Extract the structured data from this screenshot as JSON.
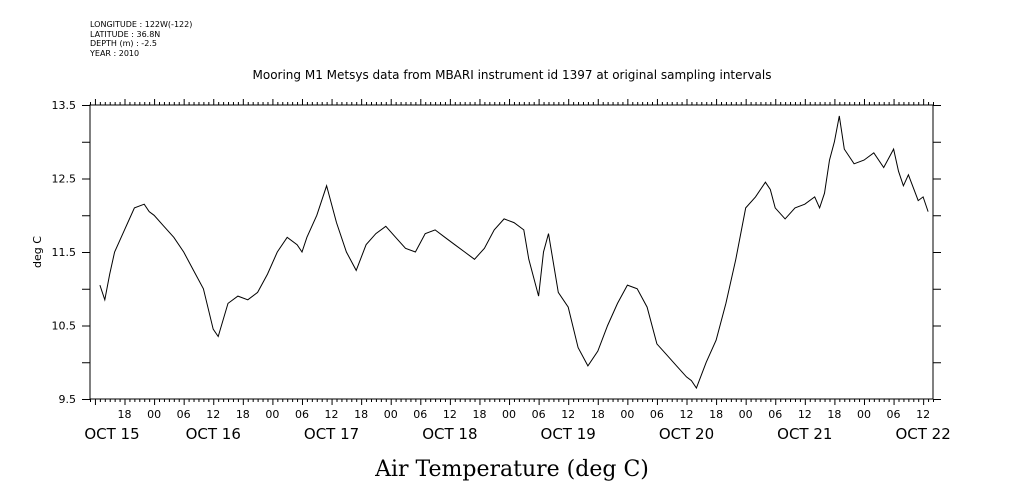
{
  "metadata": {
    "longitude": "LONGITUDE : 122W(-122)",
    "latitude": "LATITUDE : 36.8N",
    "depth": "DEPTH (m) : -2.5",
    "year": "YEAR : 2010"
  },
  "chart_data": {
    "type": "line",
    "title": "Mooring M1 Metsys data from MBARI instrument id 1397 at original sampling intervals",
    "xlabel": "Air Temperature (deg C)",
    "ylabel": "deg C",
    "ylim": [
      9.5,
      13.5
    ],
    "yticks": [
      9.5,
      10.5,
      11.5,
      12.5,
      13.5
    ],
    "xlim_hours_note": "",
    "hour_tick_labels": [
      "18",
      "00",
      "06",
      "12",
      "18",
      "00",
      "06",
      "12",
      "18",
      "00",
      "06",
      "12",
      "18",
      "00",
      "06",
      "12",
      "18",
      "00",
      "06",
      "12",
      "18",
      "00",
      "06",
      "12",
      "18",
      "00",
      "06",
      "12"
    ],
    "date_labels": [
      "OCT 15",
      "OCT 16",
      "OCT 17",
      "OCT 18",
      "OCT 19",
      "OCT 20",
      "OCT 21",
      "OCT 22"
    ],
    "grid": false,
    "series": [
      {
        "x": [
          "2010-10-15 13:00",
          "2010-10-15 14:00",
          "2010-10-15 15:00",
          "2010-10-15 16:00",
          "2010-10-15 18:00",
          "2010-10-15 20:00",
          "2010-10-15 22:00",
          "2010-10-15 23:00",
          "2010-10-16 00:00",
          "2010-10-16 02:00",
          "2010-10-16 04:00",
          "2010-10-16 06:00",
          "2010-10-16 08:00",
          "2010-10-16 10:00",
          "2010-10-16 12:00",
          "2010-10-16 13:00",
          "2010-10-16 15:00",
          "2010-10-16 17:00",
          "2010-10-16 19:00",
          "2010-10-16 21:00",
          "2010-10-16 23:00",
          "2010-10-17 01:00",
          "2010-10-17 03:00",
          "2010-10-17 05:00",
          "2010-10-17 06:00",
          "2010-10-17 07:00",
          "2010-10-17 09:00",
          "2010-10-17 11:00",
          "2010-10-17 13:00",
          "2010-10-17 15:00",
          "2010-10-17 17:00",
          "2010-10-17 19:00",
          "2010-10-17 21:00",
          "2010-10-17 23:00",
          "2010-10-18 01:00",
          "2010-10-18 03:00",
          "2010-10-18 05:00",
          "2010-10-18 07:00",
          "2010-10-18 09:00",
          "2010-10-18 11:00",
          "2010-10-18 13:00",
          "2010-10-18 15:00",
          "2010-10-18 17:00",
          "2010-10-18 19:00",
          "2010-10-18 21:00",
          "2010-10-18 23:00",
          "2010-10-19 01:00",
          "2010-10-19 03:00",
          "2010-10-19 04:00",
          "2010-10-19 06:00",
          "2010-10-19 07:00",
          "2010-10-19 08:00",
          "2010-10-19 10:00",
          "2010-10-19 12:00",
          "2010-10-19 14:00",
          "2010-10-19 16:00",
          "2010-10-19 18:00",
          "2010-10-19 20:00",
          "2010-10-19 22:00",
          "2010-10-20 00:00",
          "2010-10-20 02:00",
          "2010-10-20 04:00",
          "2010-10-20 06:00",
          "2010-10-20 08:00",
          "2010-10-20 10:00",
          "2010-10-20 12:00",
          "2010-10-20 13:00",
          "2010-10-20 14:00",
          "2010-10-20 16:00",
          "2010-10-20 18:00",
          "2010-10-20 20:00",
          "2010-10-20 22:00",
          "2010-10-21 00:00",
          "2010-10-21 02:00",
          "2010-10-21 04:00",
          "2010-10-21 05:00",
          "2010-10-21 06:00",
          "2010-10-21 08:00",
          "2010-10-21 10:00",
          "2010-10-21 12:00",
          "2010-10-21 14:00",
          "2010-10-21 15:00",
          "2010-10-21 16:00",
          "2010-10-21 17:00",
          "2010-10-21 18:00",
          "2010-10-21 19:00",
          "2010-10-21 20:00",
          "2010-10-21 22:00",
          "2010-10-22 00:00",
          "2010-10-22 02:00",
          "2010-10-22 04:00",
          "2010-10-22 06:00",
          "2010-10-22 07:00",
          "2010-10-22 08:00",
          "2010-10-22 09:00",
          "2010-10-22 11:00",
          "2010-10-22 12:00",
          "2010-10-22 13:00"
        ],
        "values": [
          11.05,
          10.85,
          11.2,
          11.5,
          11.8,
          12.1,
          12.15,
          12.05,
          12.0,
          11.85,
          11.7,
          11.5,
          11.25,
          11.0,
          10.45,
          10.35,
          10.8,
          10.9,
          10.85,
          10.95,
          11.2,
          11.5,
          11.7,
          11.6,
          11.5,
          11.7,
          12.0,
          12.4,
          11.9,
          11.5,
          11.25,
          11.6,
          11.75,
          11.85,
          11.7,
          11.55,
          11.5,
          11.75,
          11.8,
          11.7,
          11.6,
          11.5,
          11.4,
          11.55,
          11.8,
          11.95,
          11.9,
          11.8,
          11.4,
          10.9,
          11.5,
          11.75,
          10.95,
          10.75,
          10.2,
          9.95,
          10.15,
          10.5,
          10.8,
          11.05,
          11.0,
          10.75,
          10.25,
          10.1,
          9.95,
          9.8,
          9.75,
          9.65,
          10.0,
          10.3,
          10.8,
          11.4,
          12.1,
          12.25,
          12.45,
          12.35,
          12.1,
          11.95,
          12.1,
          12.15,
          12.25,
          12.1,
          12.3,
          12.75,
          13.0,
          13.35,
          12.9,
          12.7,
          12.75,
          12.85,
          12.65,
          12.9,
          12.6,
          12.4,
          12.55,
          12.2,
          12.25,
          12.05
        ]
      }
    ]
  }
}
